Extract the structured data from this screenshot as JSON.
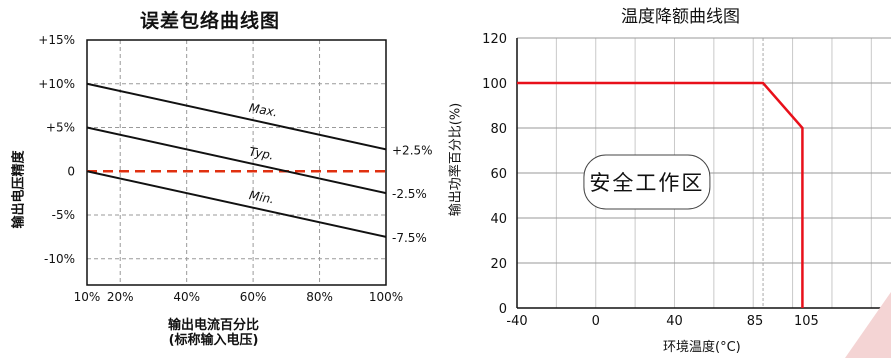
{
  "chart_data": [
    {
      "type": "line",
      "title": "误差包络曲线图",
      "ylabel": "输出电压精度",
      "xlabel": "输出电流百分比",
      "xlabel_sub": "(标称输入电压)",
      "x_ticks": [
        "10%",
        "20%",
        "40%",
        "60%",
        "80%",
        "100%"
      ],
      "x_tick_values": [
        10,
        20,
        40,
        60,
        80,
        100
      ],
      "y_ticks": [
        "+15%",
        "+10%",
        "+5%",
        "0",
        "-5%",
        "-10%"
      ],
      "y_tick_values": [
        15,
        10,
        5,
        0,
        -5,
        -10
      ],
      "xlim": [
        10,
        100
      ],
      "ylim": [
        -13,
        15
      ],
      "grid": true,
      "series": [
        {
          "name": "Max.",
          "x": [
            10,
            100
          ],
          "y": [
            10,
            2.5
          ],
          "color": "#111111",
          "end_label": "+2.5%"
        },
        {
          "name": "Typ.",
          "x": [
            10,
            100
          ],
          "y": [
            5,
            -2.5
          ],
          "color": "#111111",
          "end_label": "-2.5%"
        },
        {
          "name": "Min.",
          "x": [
            10,
            100
          ],
          "y": [
            0,
            -7.5
          ],
          "color": "#111111",
          "end_label": "-7.5%"
        }
      ],
      "reference_line": {
        "y": 0,
        "color": "#e03010",
        "dashed": true
      }
    },
    {
      "type": "line",
      "title": "温度降额曲线图",
      "ylabel": "输出功率百分比(%)",
      "xlabel": "环境温度(°C)",
      "x_ticks": [
        "-40",
        "0",
        "40",
        "85",
        "105"
      ],
      "x_tick_values": [
        -40,
        0,
        40,
        85,
        105
      ],
      "y_ticks": [
        "0",
        "20",
        "40",
        "60",
        "80",
        "100",
        "120"
      ],
      "y_tick_values": [
        0,
        20,
        40,
        60,
        80,
        100,
        120
      ],
      "xlim": [
        -40,
        150
      ],
      "ylim": [
        0,
        120
      ],
      "grid": true,
      "series": [
        {
          "x": [
            -40,
            85,
            105,
            105
          ],
          "y": [
            100,
            100,
            80,
            0
          ],
          "color": "#e8101a"
        }
      ],
      "annotation": "安全工作区"
    }
  ]
}
